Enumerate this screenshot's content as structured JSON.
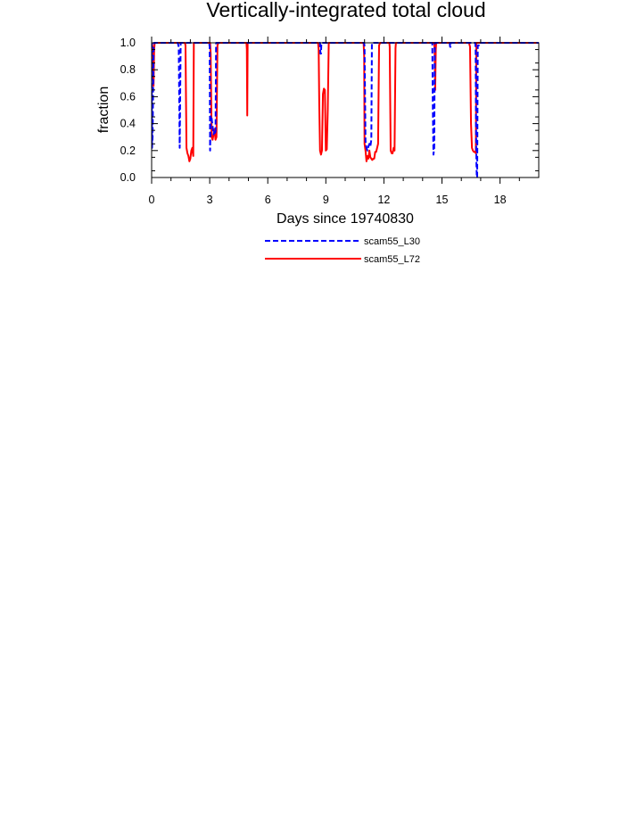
{
  "chart_data": {
    "type": "line",
    "title": "Vertically-integrated total cloud",
    "xlabel": "Days since 19740830",
    "ylabel": "fraction",
    "xlim": [
      0,
      20
    ],
    "ylim": [
      0,
      1
    ],
    "xticks": [
      0,
      3,
      6,
      9,
      12,
      15,
      18
    ],
    "yticks": [
      0.0,
      0.2,
      0.4,
      0.6,
      0.8,
      1.0
    ],
    "xtick_labels": [
      "0",
      "3",
      "6",
      "9",
      "12",
      "15",
      "18"
    ],
    "ytick_labels": [
      "0.0",
      "0.2",
      "0.4",
      "0.6",
      "0.8",
      "1.0"
    ],
    "legend_position": "bottom-center",
    "series": [
      {
        "name": "scam55_L30",
        "color": "#0000ff",
        "style": "dashed",
        "x": [
          0,
          0.02,
          0.05,
          0.1,
          0.12,
          0.15,
          1.35,
          1.4,
          1.45,
          1.5,
          1.55,
          2.97,
          3.0,
          3.02,
          3.05,
          3.1,
          3.15,
          3.2,
          3.25,
          3.3,
          3.33,
          3.36,
          8.7,
          8.72,
          8.75,
          8.77,
          10.98,
          11.0,
          11.05,
          11.1,
          11.15,
          11.2,
          11.25,
          11.3,
          11.35,
          11.38,
          11.42,
          11.45,
          14.5,
          14.53,
          14.56,
          14.6,
          14.63,
          14.66,
          15.4,
          15.42,
          15.45,
          15.47,
          16.72,
          16.74,
          16.76,
          16.78,
          16.8,
          16.82,
          16.85,
          16.9,
          16.93,
          16.96,
          20
        ],
        "values": [
          1.0,
          0.22,
          0.3,
          0.97,
          1.0,
          1.0,
          1.0,
          0.97,
          0.22,
          1.0,
          1.0,
          1.0,
          0.97,
          0.2,
          0.46,
          0.44,
          0.38,
          0.32,
          0.34,
          0.32,
          1.0,
          1.0,
          1.0,
          0.92,
          0.92,
          1.0,
          1.0,
          0.97,
          0.27,
          0.22,
          0.2,
          0.23,
          0.25,
          0.23,
          0.28,
          1.0,
          1.0,
          1.0,
          1.0,
          0.5,
          0.17,
          0.22,
          1.0,
          1.0,
          1.0,
          0.97,
          0.97,
          1.0,
          1.0,
          0.95,
          0.4,
          0.1,
          0.0,
          0.0,
          0.98,
          0.98,
          1.0,
          1.0,
          1.0
        ]
      },
      {
        "name": "scam55_L72",
        "color": "#ff0000",
        "style": "solid",
        "x": [
          0,
          0.05,
          0.08,
          0.1,
          0.13,
          0.16,
          1.72,
          1.75,
          1.8,
          1.85,
          1.9,
          1.95,
          2.0,
          2.05,
          2.1,
          2.15,
          2.18,
          3.02,
          3.05,
          3.1,
          3.15,
          3.2,
          3.25,
          3.3,
          3.35,
          3.4,
          3.45,
          4.9,
          4.92,
          4.94,
          4.96,
          8.6,
          8.63,
          8.66,
          8.7,
          8.75,
          8.8,
          8.85,
          8.9,
          8.95,
          9.0,
          9.05,
          9.1,
          9.15,
          9.2,
          10.95,
          10.98,
          11.0,
          11.05,
          11.1,
          11.15,
          11.2,
          11.25,
          11.3,
          11.35,
          11.4,
          11.45,
          11.5,
          11.55,
          11.6,
          11.65,
          11.7,
          11.75,
          11.8,
          12.28,
          12.3,
          12.35,
          12.4,
          12.45,
          12.5,
          12.55,
          12.6,
          12.62,
          14.6,
          14.62,
          14.65,
          14.68,
          14.7,
          16.4,
          16.45,
          16.5,
          16.55,
          16.6,
          16.65,
          16.7,
          16.75,
          16.78,
          16.8,
          20
        ],
        "values": [
          1.0,
          0.97,
          0.72,
          0.68,
          0.95,
          1.0,
          1.0,
          0.98,
          0.22,
          0.18,
          0.16,
          0.12,
          0.14,
          0.2,
          0.22,
          0.16,
          1.0,
          1.0,
          0.92,
          0.3,
          0.28,
          0.32,
          0.36,
          0.28,
          0.3,
          0.98,
          1.0,
          1.0,
          0.95,
          0.46,
          1.0,
          1.0,
          0.95,
          0.55,
          0.2,
          0.17,
          0.2,
          0.62,
          0.66,
          0.65,
          0.2,
          0.21,
          0.5,
          1.0,
          1.0,
          1.0,
          0.9,
          0.25,
          0.2,
          0.12,
          0.16,
          0.14,
          0.2,
          0.15,
          0.14,
          0.13,
          0.14,
          0.14,
          0.19,
          0.19,
          0.22,
          0.25,
          0.98,
          1.0,
          1.0,
          0.97,
          0.2,
          0.18,
          0.18,
          0.22,
          0.2,
          0.96,
          1.0,
          1.0,
          0.95,
          0.65,
          0.95,
          1.0,
          1.0,
          0.97,
          0.4,
          0.22,
          0.2,
          0.19,
          0.19,
          0.18,
          1.0,
          1.0,
          1.0
        ]
      }
    ]
  }
}
